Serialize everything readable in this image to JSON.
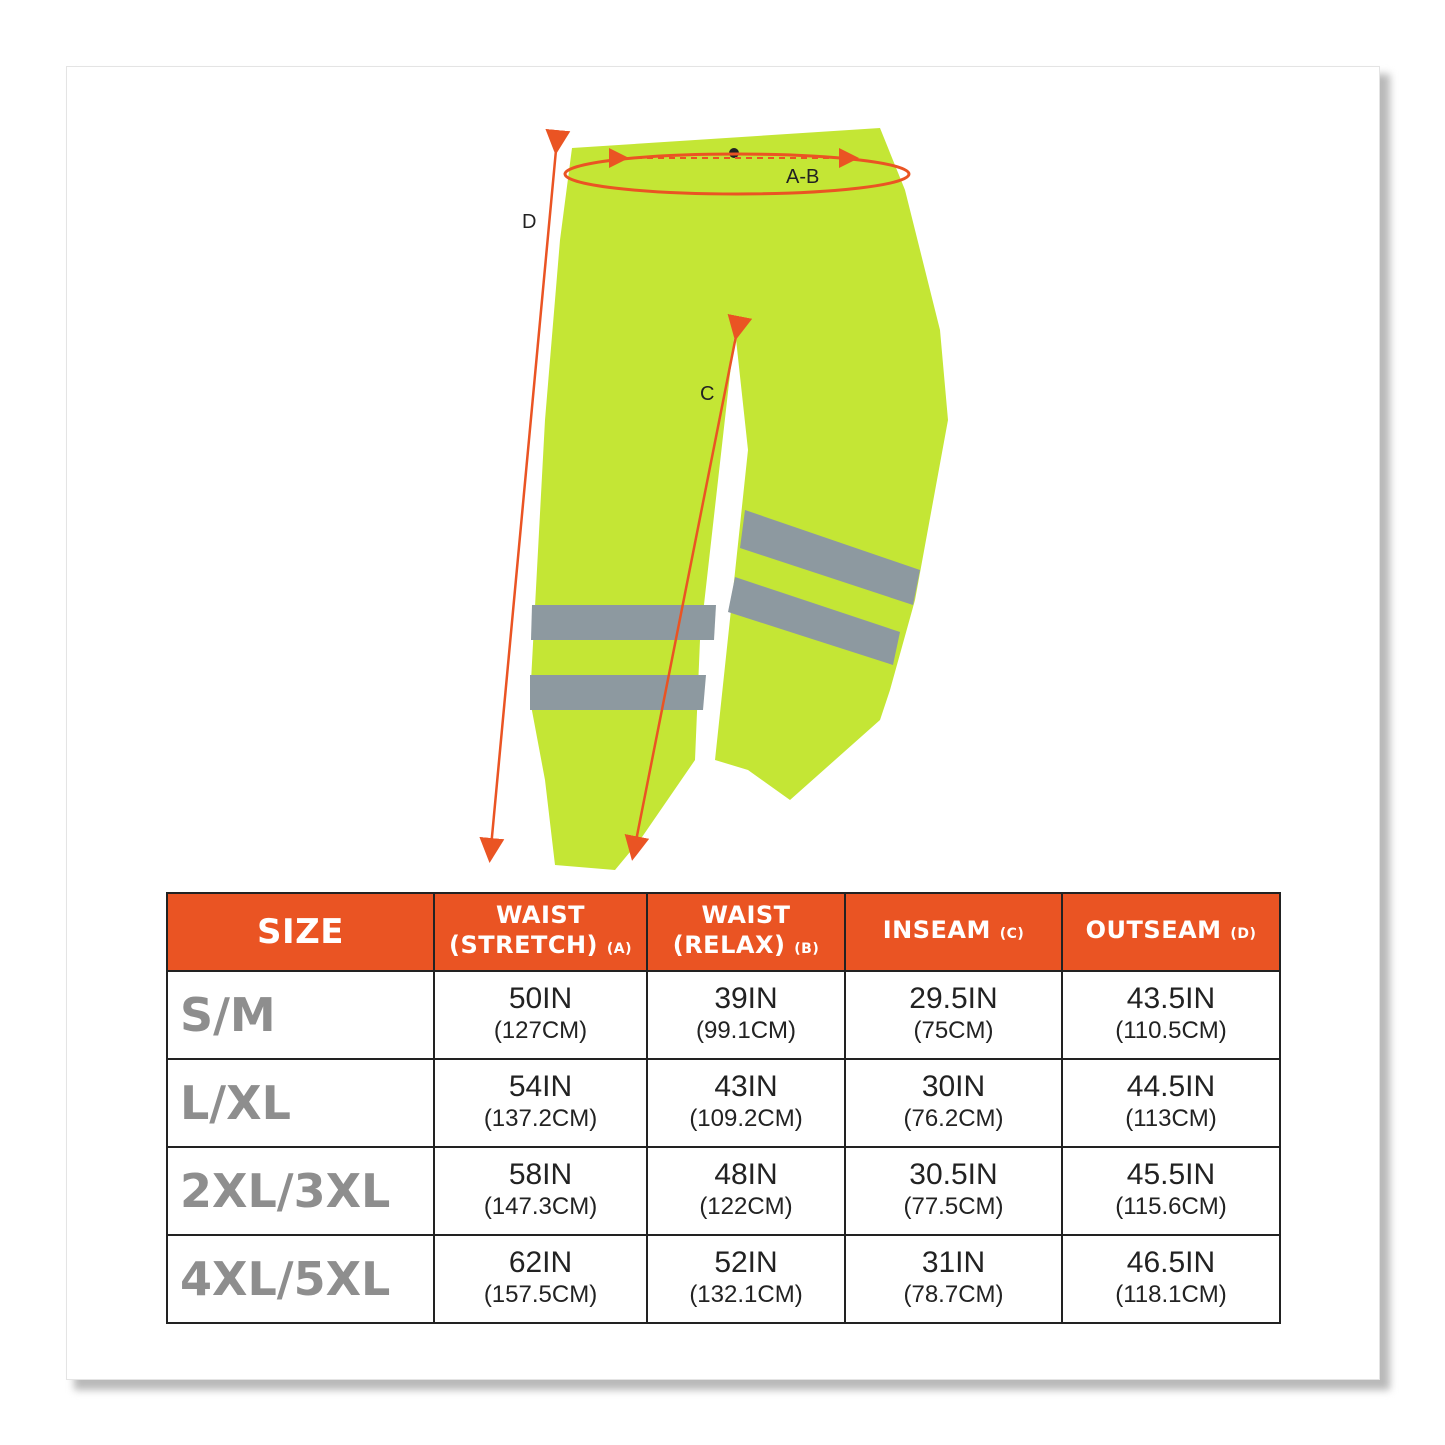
{
  "diagram": {
    "labels": {
      "waist": "A-B",
      "outseam": "D",
      "inseam": "C"
    },
    "colors": {
      "garment": "#c4e635",
      "reflective": "#8d99a0",
      "arrow": "#ea5423",
      "header": "#ea5423",
      "size_text": "#8e8e8e"
    }
  },
  "table": {
    "headers": [
      {
        "label": "SIZE",
        "sub": ""
      },
      {
        "label": "WAIST (STRETCH)",
        "sub": "(A)"
      },
      {
        "label": "WAIST (RELAX)",
        "sub": "(B)"
      },
      {
        "label": "INSEAM",
        "sub": "(C)"
      },
      {
        "label": "OUTSEAM",
        "sub": "(D)"
      }
    ],
    "rows": [
      {
        "size": "S/M",
        "cells": [
          {
            "in": "50IN",
            "cm": "(127CM)"
          },
          {
            "in": "39IN",
            "cm": "(99.1CM)"
          },
          {
            "in": "29.5IN",
            "cm": "(75CM)"
          },
          {
            "in": "43.5IN",
            "cm": "(110.5CM)"
          }
        ]
      },
      {
        "size": "L/XL",
        "cells": [
          {
            "in": "54IN",
            "cm": "(137.2CM)"
          },
          {
            "in": "43IN",
            "cm": "(109.2CM)"
          },
          {
            "in": "30IN",
            "cm": "(76.2CM)"
          },
          {
            "in": "44.5IN",
            "cm": "(113CM)"
          }
        ]
      },
      {
        "size": "2XL/3XL",
        "cells": [
          {
            "in": "58IN",
            "cm": "(147.3CM)"
          },
          {
            "in": "48IN",
            "cm": "(122CM)"
          },
          {
            "in": "30.5IN",
            "cm": "(77.5CM)"
          },
          {
            "in": "45.5IN",
            "cm": "(115.6CM)"
          }
        ]
      },
      {
        "size": "4XL/5XL",
        "cells": [
          {
            "in": "62IN",
            "cm": "(157.5CM)"
          },
          {
            "in": "52IN",
            "cm": "(132.1CM)"
          },
          {
            "in": "31IN",
            "cm": "(78.7CM)"
          },
          {
            "in": "46.5IN",
            "cm": "(118.1CM)"
          }
        ]
      }
    ]
  }
}
